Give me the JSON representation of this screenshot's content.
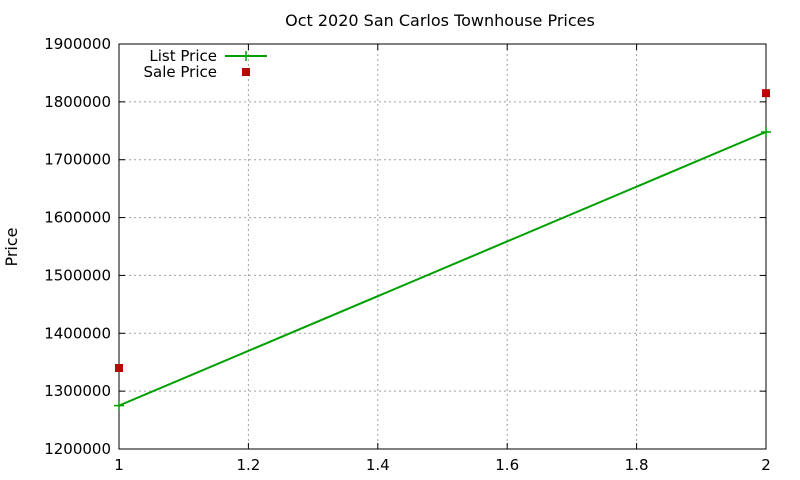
{
  "chart_data": {
    "type": "line",
    "title": "Oct 2020 San Carlos Townhouse Prices",
    "xlabel": "",
    "ylabel": "Price",
    "xlim": [
      1,
      2
    ],
    "ylim": [
      1200000,
      1900000
    ],
    "x_ticks": [
      "1",
      "1.2",
      "1.4",
      "1.6",
      "1.8",
      "2"
    ],
    "y_ticks": [
      "1200000",
      "1300000",
      "1400000",
      "1500000",
      "1600000",
      "1700000",
      "1800000",
      "1900000"
    ],
    "grid": true,
    "legend_position": "top-left",
    "series": [
      {
        "name": "List Price",
        "style": "line-with-plus-markers",
        "color": "#00a000",
        "points": [
          {
            "x": 1,
            "y": 1275000
          },
          {
            "x": 2,
            "y": 1748000
          }
        ]
      },
      {
        "name": "Sale Price",
        "style": "square-points",
        "color": "#c00000",
        "points": [
          {
            "x": 1,
            "y": 1340000
          },
          {
            "x": 2,
            "y": 1815000
          }
        ]
      }
    ]
  }
}
